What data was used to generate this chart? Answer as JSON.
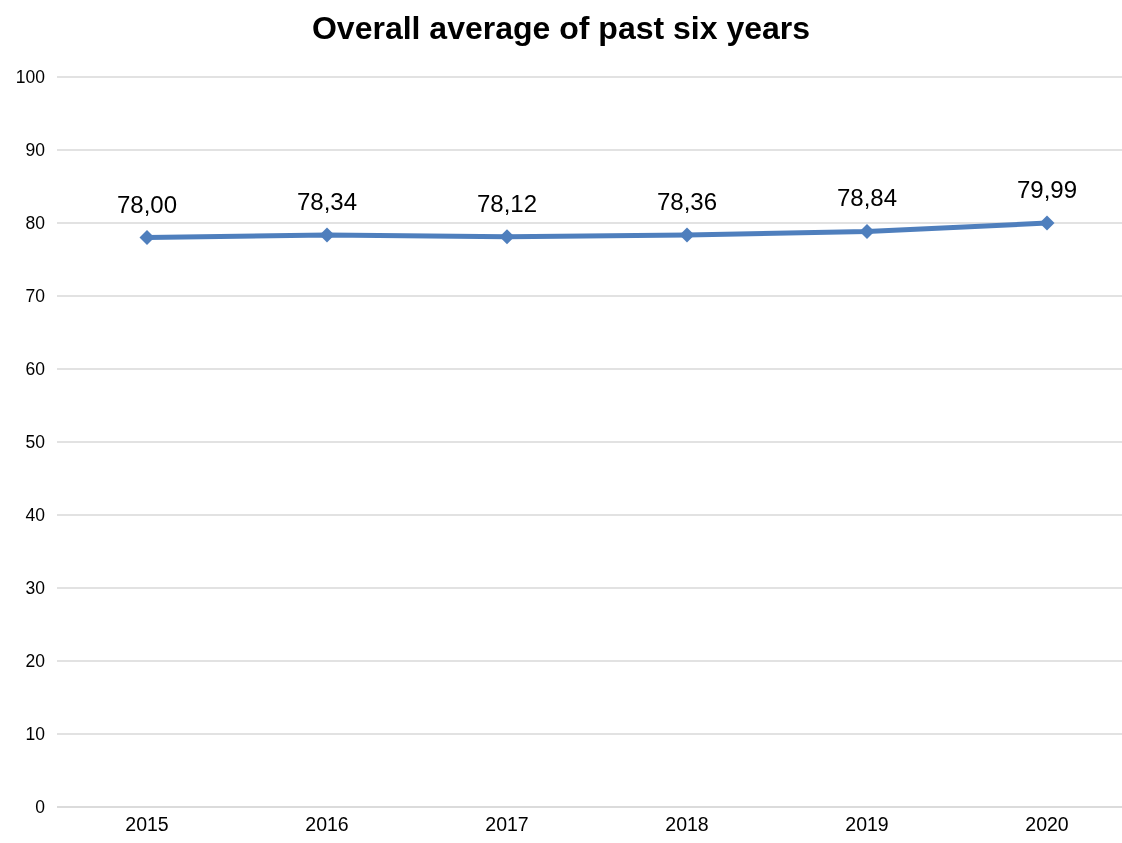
{
  "chart_data": {
    "type": "line",
    "title": "Overall average of past six years",
    "categories": [
      "2015",
      "2016",
      "2017",
      "2018",
      "2019",
      "2020"
    ],
    "series": [
      {
        "color": "#4f7fbd",
        "values": [
          78.0,
          78.34,
          78.12,
          78.36,
          78.84,
          79.99
        ],
        "value_labels": [
          "78,00",
          "78,34",
          "78,12",
          "78,36",
          "78,84",
          "79,99"
        ]
      }
    ],
    "ylim": [
      0,
      100
    ],
    "yticks": [
      0,
      10,
      20,
      30,
      40,
      50,
      60,
      70,
      80,
      90,
      100
    ],
    "grid": "y",
    "marker": "diamond",
    "line_style": "solid"
  }
}
